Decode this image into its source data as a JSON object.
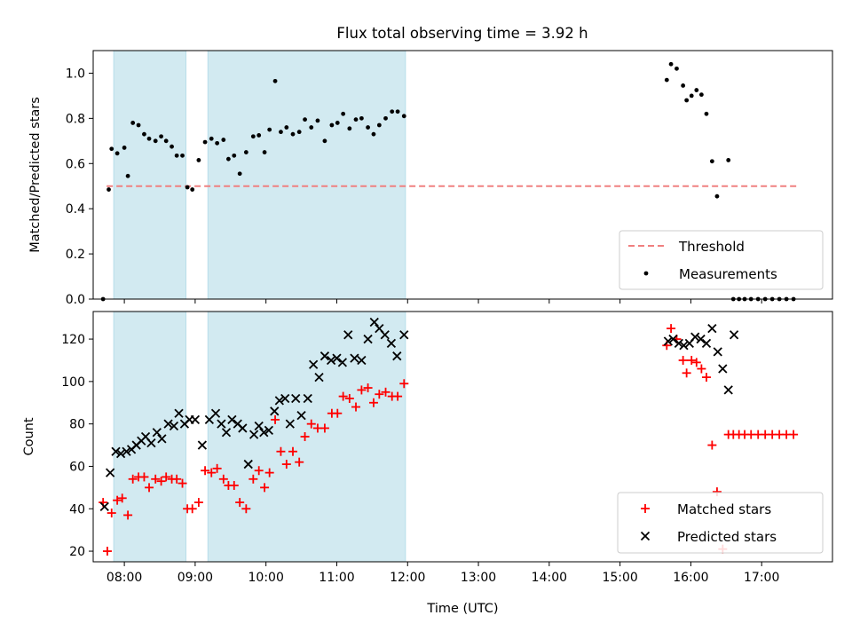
{
  "title": "Flux total observing time = 3.92 h",
  "colors": {
    "shade": "#add8e6",
    "threshold": "#f08080",
    "measurement": "#000000",
    "matched": "#ff0000",
    "predicted": "#000000"
  },
  "chart_data": [
    {
      "type": "scatter",
      "ylabel": "Matched/Predicted stars",
      "xlim": [
        7.56,
        18.0
      ],
      "ylim": [
        0.0,
        1.1
      ],
      "yticks": [
        0.0,
        0.2,
        0.4,
        0.6,
        0.8,
        1.0
      ],
      "ytick_labels": [
        "0.0",
        "0.2",
        "0.4",
        "0.6",
        "0.8",
        "1.0"
      ],
      "grid": false,
      "legend_position": "bottom-right",
      "shaded_intervals": [
        [
          7.85,
          8.87
        ],
        [
          9.18,
          11.97
        ]
      ],
      "threshold": {
        "name": "Threshold",
        "x": [
          7.75,
          17.5
        ],
        "y": 0.5
      },
      "series": [
        {
          "name": "Measurements",
          "marker": "dot",
          "x": [
            7.7,
            7.78,
            7.82,
            7.9,
            8.0,
            8.05,
            8.12,
            8.2,
            8.28,
            8.35,
            8.44,
            8.52,
            8.59,
            8.67,
            8.74,
            8.82,
            8.89,
            8.96,
            9.05,
            9.14,
            9.23,
            9.31,
            9.4,
            9.47,
            9.55,
            9.63,
            9.72,
            9.82,
            9.9,
            9.98,
            10.05,
            10.13,
            10.21,
            10.29,
            10.38,
            10.47,
            10.55,
            10.64,
            10.73,
            10.83,
            10.93,
            11.01,
            11.09,
            11.18,
            11.27,
            11.35,
            11.44,
            11.52,
            11.6,
            11.69,
            11.78,
            11.86,
            11.95,
            15.66,
            15.72,
            15.8,
            15.89,
            15.94,
            16.01,
            16.08,
            16.15,
            16.22,
            16.3,
            16.37,
            16.45,
            16.53,
            16.6,
            16.68,
            16.76,
            16.85,
            16.95,
            17.05,
            17.15,
            17.25,
            17.35,
            17.45
          ],
          "y": [
            0.0,
            0.485,
            0.665,
            0.645,
            0.67,
            0.545,
            0.78,
            0.77,
            0.73,
            0.71,
            0.7,
            0.72,
            0.7,
            0.675,
            0.635,
            0.635,
            0.495,
            0.485,
            0.615,
            0.695,
            0.71,
            0.69,
            0.705,
            0.62,
            0.635,
            0.555,
            0.65,
            0.72,
            0.725,
            0.65,
            0.75,
            0.965,
            0.74,
            0.76,
            0.73,
            0.74,
            0.795,
            0.76,
            0.79,
            0.7,
            0.77,
            0.78,
            0.82,
            0.755,
            0.795,
            0.8,
            0.76,
            0.73,
            0.77,
            0.8,
            0.83,
            0.83,
            0.81,
            0.97,
            1.04,
            1.02,
            0.945,
            0.88,
            0.9,
            0.925,
            0.905,
            0.82,
            0.61,
            0.455,
            0.22,
            0.615,
            0.0,
            0.0,
            0.0,
            0.0,
            0.0,
            0.0,
            0.0,
            0.0,
            0.0,
            0.0
          ]
        }
      ],
      "legend": [
        "Threshold",
        "Measurements"
      ]
    },
    {
      "type": "scatter",
      "title": "",
      "xlabel": "Time (UTC)",
      "ylabel": "Count",
      "xlim": [
        7.56,
        18.0
      ],
      "ylim": [
        15,
        133
      ],
      "xticks": [
        8,
        9,
        10,
        11,
        12,
        13,
        14,
        15,
        16,
        17
      ],
      "xtick_labels": [
        "08:00",
        "09:00",
        "10:00",
        "11:00",
        "12:00",
        "13:00",
        "14:00",
        "15:00",
        "16:00",
        "17:00"
      ],
      "yticks": [
        20,
        40,
        60,
        80,
        100,
        120
      ],
      "ytick_labels": [
        "20",
        "40",
        "60",
        "80",
        "100",
        "120"
      ],
      "grid": false,
      "legend_position": "bottom-right",
      "shaded_intervals": [
        [
          7.85,
          8.87
        ],
        [
          9.18,
          11.97
        ]
      ],
      "series": [
        {
          "name": "Matched stars",
          "marker": "plus",
          "x": [
            7.7,
            7.76,
            7.82,
            7.9,
            7.97,
            8.05,
            8.12,
            8.2,
            8.28,
            8.35,
            8.44,
            8.52,
            8.59,
            8.67,
            8.74,
            8.82,
            8.89,
            8.96,
            9.05,
            9.14,
            9.23,
            9.31,
            9.4,
            9.47,
            9.55,
            9.63,
            9.72,
            9.82,
            9.9,
            9.98,
            10.05,
            10.13,
            10.21,
            10.29,
            10.38,
            10.47,
            10.55,
            10.64,
            10.73,
            10.83,
            10.93,
            11.01,
            11.09,
            11.18,
            11.27,
            11.35,
            11.44,
            11.52,
            11.6,
            11.69,
            11.78,
            11.86,
            11.95,
            15.66,
            15.72,
            15.8,
            15.89,
            15.94,
            16.01,
            16.08,
            16.15,
            16.22,
            16.3,
            16.37,
            16.45,
            16.53,
            16.6,
            16.68,
            16.76,
            16.85,
            16.95,
            17.05,
            17.15,
            17.25,
            17.35,
            17.45
          ],
          "y": [
            43,
            20,
            38,
            44,
            45,
            37,
            54,
            55,
            55,
            50,
            54,
            53,
            55,
            54,
            54,
            52,
            40,
            40,
            43,
            58,
            57,
            59,
            54,
            51,
            51,
            43,
            40,
            54,
            58,
            50,
            57,
            82,
            67,
            61,
            67,
            62,
            74,
            80,
            78,
            78,
            85,
            85,
            93,
            92,
            88,
            96,
            97,
            90,
            94,
            95,
            93,
            93,
            99,
            117,
            125,
            120,
            110,
            104,
            110,
            109,
            106,
            102,
            70,
            48,
            21,
            75,
            75,
            75,
            75,
            75,
            75,
            75,
            75,
            75,
            75,
            75
          ]
        },
        {
          "name": "Predicted stars",
          "marker": "x",
          "x": [
            7.72,
            7.8,
            7.88,
            7.95,
            8.03,
            8.1,
            8.17,
            8.24,
            8.3,
            8.38,
            8.46,
            8.53,
            8.62,
            8.7,
            8.77,
            8.85,
            8.92,
            9.0,
            9.1,
            9.2,
            9.29,
            9.37,
            9.44,
            9.52,
            9.6,
            9.67,
            9.75,
            9.83,
            9.9,
            9.97,
            10.04,
            10.12,
            10.19,
            10.27,
            10.34,
            10.42,
            10.5,
            10.59,
            10.67,
            10.75,
            10.83,
            10.92,
            11.0,
            11.08,
            11.16,
            11.25,
            11.35,
            11.44,
            11.53,
            11.6,
            11.68,
            11.77,
            11.85,
            11.95,
            15.68,
            15.75,
            15.83,
            15.9,
            15.98,
            16.06,
            16.14,
            16.22,
            16.3,
            16.38,
            16.45,
            16.53,
            16.61
          ],
          "y": [
            41,
            57,
            67,
            66,
            67,
            68,
            70,
            72,
            74,
            71,
            76,
            73,
            80,
            79,
            85,
            80,
            82,
            82,
            70,
            82,
            85,
            80,
            76,
            82,
            80,
            78,
            61,
            75,
            79,
            76,
            77,
            86,
            91,
            92,
            80,
            92,
            84,
            92,
            108,
            102,
            112,
            110,
            111,
            109,
            122,
            111,
            110,
            120,
            128,
            125,
            122,
            118,
            112,
            122,
            119,
            120,
            118,
            117,
            118,
            121,
            120,
            118,
            125,
            114,
            106,
            96,
            122
          ]
        }
      ],
      "legend": [
        "Matched stars",
        "Predicted stars"
      ]
    }
  ]
}
